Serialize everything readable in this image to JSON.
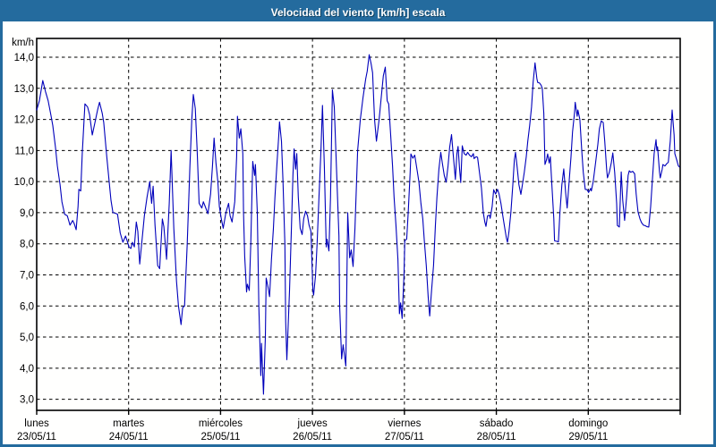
{
  "title": "Velocidad del viento [km/h] escala",
  "colors": {
    "frame": "#246b9e",
    "title_text": "#ffffff",
    "plot_background": "#fffffe",
    "grid": "#000000",
    "axis_text": "#000000",
    "line": "#0000bb"
  },
  "y_axis": {
    "unit_label": "km/h",
    "tick_labels": [
      "14,0",
      "13,0",
      "12,0",
      "11,0",
      "10,0",
      "9,0",
      "8,0",
      "7,0",
      "6,0",
      "5,0",
      "4,0",
      "3,0"
    ],
    "tick_values": [
      14,
      13,
      12,
      11,
      10,
      9,
      8,
      7,
      6,
      5,
      4,
      3
    ]
  },
  "x_axis": {
    "days": [
      {
        "name": "lunes",
        "date": "23/05/11"
      },
      {
        "name": "martes",
        "date": "24/05/11"
      },
      {
        "name": "miércoles",
        "date": "25/05/11"
      },
      {
        "name": "jueves",
        "date": "26/05/11"
      },
      {
        "name": "viernes",
        "date": "27/05/11"
      },
      {
        "name": "sábado",
        "date": "28/05/11"
      },
      {
        "name": "domingo",
        "date": "29/05/11"
      }
    ]
  },
  "chart_data": {
    "type": "line",
    "title": "Velocidad del viento [km/h] escala",
    "ylabel": "km/h",
    "ylim": [
      3,
      14
    ],
    "y_ticks": [
      3,
      4,
      5,
      6,
      7,
      8,
      9,
      10,
      11,
      12,
      13,
      14
    ],
    "x_unit": "hours since lunes 23/05/11 00:00",
    "x_range_hours": [
      0,
      168
    ],
    "grid": true,
    "legend": "none",
    "series_name": "Velocidad del viento",
    "points": [
      [
        0.0,
        12.3
      ],
      [
        0.7,
        12.6
      ],
      [
        1.6,
        13.25
      ],
      [
        2.3,
        12.9
      ],
      [
        3.0,
        12.6
      ],
      [
        3.7,
        12.15
      ],
      [
        4.2,
        11.8
      ],
      [
        4.9,
        11.1
      ],
      [
        5.4,
        10.5
      ],
      [
        6.1,
        9.9
      ],
      [
        6.6,
        9.35
      ],
      [
        7.3,
        8.95
      ],
      [
        8.0,
        8.9
      ],
      [
        8.7,
        8.6
      ],
      [
        9.4,
        8.75
      ],
      [
        9.8,
        8.65
      ],
      [
        10.3,
        8.45
      ],
      [
        10.8,
        9.2
      ],
      [
        11.0,
        9.75
      ],
      [
        11.5,
        9.7
      ],
      [
        11.9,
        10.9
      ],
      [
        12.6,
        12.5
      ],
      [
        13.3,
        12.4
      ],
      [
        13.8,
        12.15
      ],
      [
        14.5,
        11.5
      ],
      [
        15.2,
        11.9
      ],
      [
        15.9,
        12.3
      ],
      [
        16.4,
        12.55
      ],
      [
        17.1,
        12.2
      ],
      [
        17.5,
        11.9
      ],
      [
        18.3,
        10.8
      ],
      [
        19.0,
        9.9
      ],
      [
        19.4,
        9.4
      ],
      [
        19.9,
        9.0
      ],
      [
        20.6,
        8.98
      ],
      [
        21.1,
        8.95
      ],
      [
        21.8,
        8.35
      ],
      [
        22.5,
        8.05
      ],
      [
        23.2,
        8.25
      ],
      [
        23.6,
        8.1
      ],
      [
        24.1,
        7.9
      ],
      [
        24.6,
        7.85
      ],
      [
        25.0,
        8.05
      ],
      [
        25.5,
        7.9
      ],
      [
        26.0,
        8.7
      ],
      [
        26.4,
        8.4
      ],
      [
        26.9,
        7.35
      ],
      [
        27.4,
        8.0
      ],
      [
        28.1,
        8.9
      ],
      [
        28.8,
        9.5
      ],
      [
        29.5,
        10.0
      ],
      [
        30.0,
        9.3
      ],
      [
        30.4,
        9.85
      ],
      [
        30.9,
        8.6
      ],
      [
        31.6,
        7.3
      ],
      [
        32.1,
        7.2
      ],
      [
        32.8,
        8.8
      ],
      [
        33.2,
        8.55
      ],
      [
        33.9,
        7.5
      ],
      [
        34.6,
        9.3
      ],
      [
        35.1,
        11.0
      ],
      [
        35.8,
        8.5
      ],
      [
        36.5,
        6.8
      ],
      [
        37.0,
        6.0
      ],
      [
        37.7,
        5.4
      ],
      [
        38.1,
        5.95
      ],
      [
        38.6,
        6.0
      ],
      [
        39.3,
        8.0
      ],
      [
        40.0,
        10.5
      ],
      [
        40.5,
        12.0
      ],
      [
        40.9,
        12.8
      ],
      [
        41.4,
        12.35
      ],
      [
        41.9,
        11.0
      ],
      [
        42.4,
        9.3
      ],
      [
        43.1,
        9.15
      ],
      [
        43.5,
        9.35
      ],
      [
        44.0,
        9.2
      ],
      [
        44.7,
        8.97
      ],
      [
        45.4,
        9.6
      ],
      [
        45.9,
        10.5
      ],
      [
        46.3,
        11.4
      ],
      [
        46.8,
        10.6
      ],
      [
        47.3,
        10.0
      ],
      [
        47.7,
        9.2
      ],
      [
        48.2,
        8.8
      ],
      [
        48.7,
        8.5
      ],
      [
        49.4,
        9.0
      ],
      [
        50.1,
        9.3
      ],
      [
        50.5,
        8.9
      ],
      [
        51.0,
        8.7
      ],
      [
        51.7,
        9.35
      ],
      [
        52.2,
        10.8
      ],
      [
        52.4,
        12.1
      ],
      [
        52.9,
        11.4
      ],
      [
        53.3,
        11.7
      ],
      [
        53.8,
        10.9
      ],
      [
        54.0,
        9.0
      ],
      [
        54.3,
        7.6
      ],
      [
        54.8,
        6.45
      ],
      [
        55.0,
        6.7
      ],
      [
        55.5,
        6.5
      ],
      [
        55.9,
        8.0
      ],
      [
        56.4,
        10.65
      ],
      [
        56.9,
        10.2
      ],
      [
        57.1,
        10.55
      ],
      [
        57.6,
        9.0
      ],
      [
        58.0,
        6.0
      ],
      [
        58.5,
        3.76
      ],
      [
        58.7,
        4.8
      ],
      [
        59.2,
        3.16
      ],
      [
        59.7,
        5.0
      ],
      [
        59.9,
        6.9
      ],
      [
        60.4,
        6.6
      ],
      [
        60.8,
        6.3
      ],
      [
        61.3,
        7.5
      ],
      [
        61.8,
        8.5
      ],
      [
        62.2,
        9.5
      ],
      [
        62.7,
        10.5
      ],
      [
        63.2,
        11.5
      ],
      [
        63.4,
        11.92
      ],
      [
        63.9,
        11.3
      ],
      [
        64.3,
        10.0
      ],
      [
        64.8,
        8.0
      ],
      [
        65.0,
        5.5
      ],
      [
        65.3,
        4.27
      ],
      [
        66.0,
        6.5
      ],
      [
        66.5,
        8.5
      ],
      [
        66.9,
        10.2
      ],
      [
        67.2,
        11.05
      ],
      [
        67.6,
        10.4
      ],
      [
        67.9,
        10.9
      ],
      [
        68.3,
        9.5
      ],
      [
        68.8,
        8.5
      ],
      [
        69.3,
        8.3
      ],
      [
        69.7,
        8.8
      ],
      [
        70.2,
        9.05
      ],
      [
        70.7,
        8.9
      ],
      [
        71.1,
        8.6
      ],
      [
        71.6,
        8.4
      ],
      [
        72.1,
        6.5
      ],
      [
        72.3,
        6.35
      ],
      [
        72.8,
        7.0
      ],
      [
        73.2,
        8.0
      ],
      [
        73.7,
        9.5
      ],
      [
        74.2,
        11.0
      ],
      [
        74.6,
        12.45
      ],
      [
        75.1,
        10.5
      ],
      [
        75.6,
        7.9
      ],
      [
        75.8,
        8.15
      ],
      [
        76.3,
        7.77
      ],
      [
        76.7,
        9.5
      ],
      [
        77.2,
        12.95
      ],
      [
        77.7,
        12.4
      ],
      [
        78.4,
        10.0
      ],
      [
        78.9,
        8.25
      ],
      [
        79.1,
        6.0
      ],
      [
        79.6,
        4.3
      ],
      [
        80.0,
        4.75
      ],
      [
        80.7,
        4.07
      ],
      [
        81.2,
        9.0
      ],
      [
        81.7,
        7.55
      ],
      [
        82.1,
        7.8
      ],
      [
        82.6,
        7.27
      ],
      [
        83.1,
        8.5
      ],
      [
        83.8,
        11.0
      ],
      [
        84.5,
        12.0
      ],
      [
        85.2,
        12.7
      ],
      [
        85.9,
        13.3
      ],
      [
        86.3,
        13.55
      ],
      [
        86.8,
        14.08
      ],
      [
        87.3,
        13.8
      ],
      [
        87.7,
        13.5
      ],
      [
        88.2,
        12.0
      ],
      [
        88.7,
        11.3
      ],
      [
        89.4,
        12.0
      ],
      [
        90.1,
        12.9
      ],
      [
        90.5,
        13.4
      ],
      [
        91.0,
        13.68
      ],
      [
        91.5,
        12.6
      ],
      [
        91.9,
        12.5
      ],
      [
        92.4,
        11.5
      ],
      [
        92.9,
        10.5
      ],
      [
        93.3,
        9.5
      ],
      [
        93.8,
        8.6
      ],
      [
        94.3,
        7.5
      ],
      [
        94.7,
        5.75
      ],
      [
        95.0,
        6.1
      ],
      [
        95.4,
        5.6
      ],
      [
        95.9,
        7.0
      ],
      [
        96.1,
        8.1
      ],
      [
        96.6,
        8.15
      ],
      [
        97.0,
        9.0
      ],
      [
        97.5,
        10.3
      ],
      [
        97.7,
        10.89
      ],
      [
        98.2,
        10.75
      ],
      [
        98.7,
        10.85
      ],
      [
        99.4,
        10.3
      ],
      [
        99.8,
        9.98
      ],
      [
        100.3,
        9.3
      ],
      [
        100.8,
        8.8
      ],
      [
        101.2,
        8.1
      ],
      [
        101.7,
        7.3
      ],
      [
        102.2,
        6.3
      ],
      [
        102.4,
        5.99
      ],
      [
        102.6,
        5.68
      ],
      [
        103.1,
        6.5
      ],
      [
        103.6,
        7.3
      ],
      [
        104.1,
        8.6
      ],
      [
        104.5,
        9.5
      ],
      [
        105.0,
        10.4
      ],
      [
        105.5,
        10.94
      ],
      [
        105.9,
        10.6
      ],
      [
        106.4,
        10.2
      ],
      [
        106.9,
        9.98
      ],
      [
        107.4,
        10.5
      ],
      [
        107.8,
        11.1
      ],
      [
        108.3,
        11.51
      ],
      [
        108.8,
        10.8
      ],
      [
        109.3,
        10.07
      ],
      [
        109.7,
        10.9
      ],
      [
        110.0,
        11.13
      ],
      [
        110.4,
        10.4
      ],
      [
        110.7,
        9.97
      ],
      [
        111.1,
        11.15
      ],
      [
        111.6,
        10.9
      ],
      [
        112.1,
        10.85
      ],
      [
        112.5,
        10.94
      ],
      [
        113.0,
        10.85
      ],
      [
        113.5,
        10.8
      ],
      [
        114.0,
        10.9
      ],
      [
        114.2,
        10.74
      ],
      [
        114.7,
        10.8
      ],
      [
        115.1,
        10.78
      ],
      [
        115.6,
        10.3
      ],
      [
        116.1,
        9.8
      ],
      [
        116.6,
        9.0
      ],
      [
        117.0,
        8.7
      ],
      [
        117.3,
        8.56
      ],
      [
        117.7,
        8.9
      ],
      [
        118.2,
        8.92
      ],
      [
        118.4,
        8.82
      ],
      [
        118.9,
        9.2
      ],
      [
        119.3,
        9.74
      ],
      [
        119.8,
        9.6
      ],
      [
        120.3,
        9.75
      ],
      [
        120.7,
        9.6
      ],
      [
        121.2,
        9.3
      ],
      [
        121.7,
        8.9
      ],
      [
        122.2,
        8.5
      ],
      [
        122.6,
        8.2
      ],
      [
        122.9,
        8.05
      ],
      [
        123.3,
        8.4
      ],
      [
        123.8,
        9.0
      ],
      [
        124.3,
        9.9
      ],
      [
        124.7,
        10.7
      ],
      [
        125.0,
        10.94
      ],
      [
        125.4,
        10.5
      ],
      [
        125.9,
        9.9
      ],
      [
        126.4,
        9.59
      ],
      [
        126.8,
        9.9
      ],
      [
        127.3,
        10.3
      ],
      [
        127.8,
        10.8
      ],
      [
        128.2,
        11.3
      ],
      [
        128.7,
        11.8
      ],
      [
        129.2,
        12.4
      ],
      [
        129.6,
        13.2
      ],
      [
        130.1,
        13.82
      ],
      [
        130.6,
        13.3
      ],
      [
        130.8,
        13.19
      ],
      [
        131.3,
        13.17
      ],
      [
        131.7,
        13.1
      ],
      [
        132.0,
        13.0
      ],
      [
        132.4,
        12.2
      ],
      [
        132.7,
        10.55
      ],
      [
        133.1,
        10.7
      ],
      [
        133.4,
        10.89
      ],
      [
        133.8,
        10.6
      ],
      [
        134.1,
        10.8
      ],
      [
        134.5,
        9.9
      ],
      [
        135.0,
        8.8
      ],
      [
        135.2,
        8.1
      ],
      [
        135.7,
        8.08
      ],
      [
        136.2,
        8.06
      ],
      [
        136.6,
        9.0
      ],
      [
        137.1,
        9.9
      ],
      [
        137.6,
        10.41
      ],
      [
        138.1,
        9.64
      ],
      [
        138.5,
        9.15
      ],
      [
        139.0,
        10.0
      ],
      [
        139.5,
        10.8
      ],
      [
        139.9,
        11.6
      ],
      [
        140.4,
        12.2
      ],
      [
        140.6,
        12.55
      ],
      [
        141.1,
        12.1
      ],
      [
        141.3,
        12.3
      ],
      [
        141.8,
        12.0
      ],
      [
        142.3,
        11.0
      ],
      [
        142.7,
        10.3
      ],
      [
        143.2,
        9.75
      ],
      [
        143.7,
        9.74
      ],
      [
        144.1,
        9.65
      ],
      [
        144.6,
        9.78
      ],
      [
        144.8,
        9.7
      ],
      [
        145.3,
        10.0
      ],
      [
        145.8,
        10.5
      ],
      [
        146.5,
        11.2
      ],
      [
        146.9,
        11.7
      ],
      [
        147.4,
        11.95
      ],
      [
        147.9,
        11.9
      ],
      [
        148.3,
        11.3
      ],
      [
        148.8,
        10.4
      ],
      [
        149.0,
        10.12
      ],
      [
        149.5,
        10.3
      ],
      [
        150.0,
        10.6
      ],
      [
        150.4,
        10.92
      ],
      [
        150.9,
        10.3
      ],
      [
        151.4,
        9.3
      ],
      [
        151.6,
        8.59
      ],
      [
        152.1,
        8.54
      ],
      [
        152.6,
        10.31
      ],
      [
        153.0,
        9.4
      ],
      [
        153.5,
        8.75
      ],
      [
        154.0,
        9.5
      ],
      [
        154.4,
        10.2
      ],
      [
        154.7,
        10.35
      ],
      [
        155.1,
        10.3
      ],
      [
        155.6,
        10.33
      ],
      [
        156.1,
        10.25
      ],
      [
        156.5,
        9.6
      ],
      [
        157.0,
        9.02
      ],
      [
        157.5,
        8.8
      ],
      [
        157.9,
        8.68
      ],
      [
        158.4,
        8.6
      ],
      [
        158.9,
        8.58
      ],
      [
        159.3,
        8.55
      ],
      [
        159.8,
        8.54
      ],
      [
        160.3,
        9.2
      ],
      [
        160.7,
        10.0
      ],
      [
        161.2,
        10.9
      ],
      [
        161.7,
        11.35
      ],
      [
        161.9,
        11.0
      ],
      [
        162.1,
        11.12
      ],
      [
        162.6,
        10.3
      ],
      [
        162.8,
        10.12
      ],
      [
        163.3,
        10.4
      ],
      [
        163.5,
        10.55
      ],
      [
        164.0,
        10.5
      ],
      [
        164.5,
        10.58
      ],
      [
        164.9,
        10.62
      ],
      [
        165.4,
        11.3
      ],
      [
        165.9,
        12.3
      ],
      [
        166.4,
        11.5
      ],
      [
        166.6,
        10.9
      ],
      [
        167.1,
        10.7
      ],
      [
        167.5,
        10.51
      ],
      [
        167.8,
        10.47
      ]
    ]
  }
}
